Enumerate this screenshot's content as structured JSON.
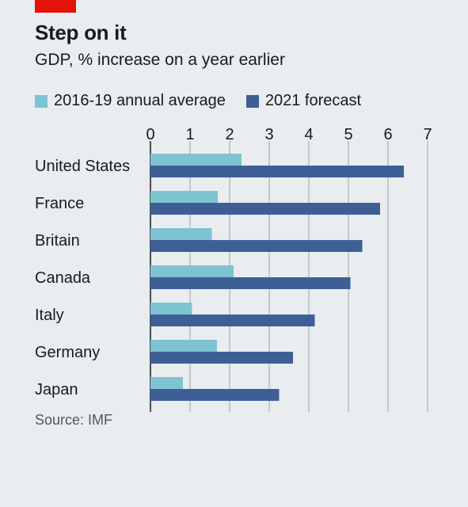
{
  "title": "Step on it",
  "subtitle": "GDP, % increase on a year earlier",
  "source": "Source: IMF",
  "colors": {
    "series_a": "#7ec3d1",
    "series_b": "#3d5f96",
    "brand_tag": "#e3120b",
    "grid": "#9aa3ab"
  },
  "chart_data": {
    "type": "bar",
    "orientation": "horizontal",
    "categories": [
      "United States",
      "France",
      "Britain",
      "Canada",
      "Italy",
      "Germany",
      "Japan"
    ],
    "series": [
      {
        "name": "2016-19 annual average",
        "values": [
          2.3,
          1.7,
          1.55,
          2.1,
          1.05,
          1.68,
          0.82
        ]
      },
      {
        "name": "2021 forecast",
        "values": [
          6.4,
          5.8,
          5.35,
          5.05,
          4.15,
          3.6,
          3.25
        ]
      }
    ],
    "xlim": [
      0,
      7
    ],
    "xticks": [
      "0",
      "1",
      "2",
      "3",
      "4",
      "5",
      "6",
      "7"
    ],
    "grid": true,
    "legend_position": "top-left"
  }
}
